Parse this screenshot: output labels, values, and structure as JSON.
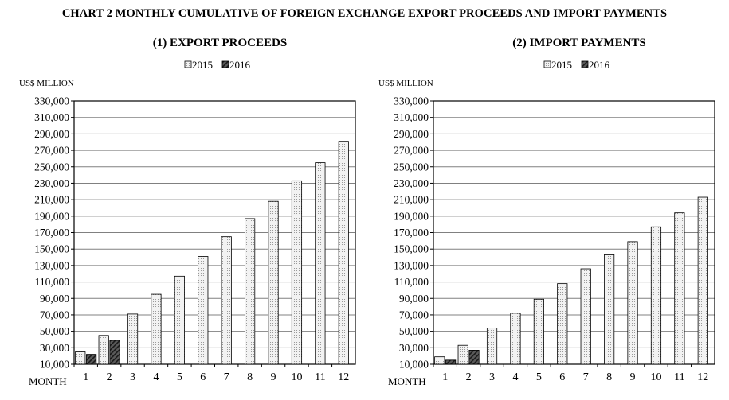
{
  "title": "CHART 2  MONTHLY CUMULATIVE OF FOREIGN EXCHANGE EXPORT PROCEEDS AND IMPORT PAYMENTS",
  "colors": {
    "series_2015": "#f2f2f2",
    "series_2016": "#5a5a5a",
    "axis": "#000000",
    "grid": "#808080"
  },
  "chart_data": [
    {
      "type": "bar",
      "title": "(1) EXPORT PROCEEDS",
      "ylabel": "US$ MILLION",
      "xlabel": "MONTH",
      "categories": [
        "1",
        "2",
        "3",
        "4",
        "5",
        "6",
        "7",
        "8",
        "9",
        "10",
        "11",
        "12"
      ],
      "series": [
        {
          "name": "2015",
          "pattern": "dotted-light",
          "values": [
            25000,
            45000,
            71000,
            95000,
            117000,
            141000,
            165000,
            187000,
            208000,
            233000,
            255000,
            281000
          ]
        },
        {
          "name": "2016",
          "pattern": "hatched-dark",
          "values": [
            22000,
            39000,
            null,
            null,
            null,
            null,
            null,
            null,
            null,
            null,
            null,
            null
          ]
        }
      ],
      "ylim": [
        10000,
        330000
      ],
      "yticks": [
        "330,000",
        "310,000",
        "290,000",
        "270,000",
        "250,000",
        "230,000",
        "210,000",
        "190,000",
        "170,000",
        "150,000",
        "130,000",
        "110,000",
        "90,000",
        "70,000",
        "50,000",
        "30,000",
        "10,000"
      ],
      "grid": true,
      "legend": "top-center"
    },
    {
      "type": "bar",
      "title": "(2) IMPORT PAYMENTS",
      "ylabel": "US$ MILLION",
      "xlabel": "MONTH",
      "categories": [
        "1",
        "2",
        "3",
        "4",
        "5",
        "6",
        "7",
        "8",
        "9",
        "10",
        "11",
        "12"
      ],
      "series": [
        {
          "name": "2015",
          "pattern": "dotted-light",
          "values": [
            19000,
            33000,
            54000,
            72000,
            89000,
            108000,
            126000,
            143000,
            159000,
            177000,
            194000,
            213000
          ]
        },
        {
          "name": "2016",
          "pattern": "hatched-dark",
          "values": [
            15000,
            27000,
            null,
            null,
            null,
            null,
            null,
            null,
            null,
            null,
            null,
            null
          ]
        }
      ],
      "ylim": [
        10000,
        330000
      ],
      "yticks": [
        "330,000",
        "310,000",
        "290,000",
        "270,000",
        "250,000",
        "230,000",
        "210,000",
        "190,000",
        "170,000",
        "150,000",
        "130,000",
        "110,000",
        "90,000",
        "70,000",
        "50,000",
        "30,000",
        "10,000"
      ],
      "grid": true,
      "legend": "top-center"
    }
  ]
}
